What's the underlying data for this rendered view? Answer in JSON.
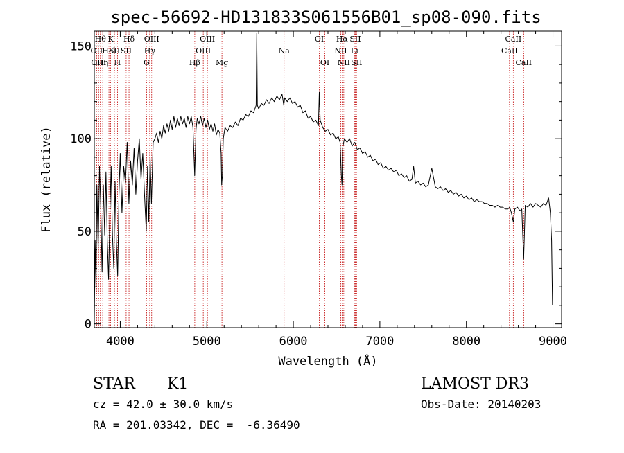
{
  "chart_data": {
    "type": "line",
    "title": "spec-56692-HD131833S061556B01_sp08-090.fits",
    "xlabel": "Wavelength (Å)",
    "ylabel": "Flux (relative)",
    "xlim": [
      3700,
      9100
    ],
    "ylim": [
      -2,
      158
    ],
    "xticks": [
      4000,
      5000,
      6000,
      7000,
      8000,
      9000
    ],
    "yticks": [
      0,
      50,
      100,
      150
    ],
    "grid": false,
    "legend": "none",
    "series": [
      {
        "name": "flux",
        "points": [
          [
            3700,
            2
          ],
          [
            3710,
            45
          ],
          [
            3720,
            18
          ],
          [
            3730,
            75
          ],
          [
            3745,
            40
          ],
          [
            3760,
            85
          ],
          [
            3775,
            62
          ],
          [
            3790,
            28
          ],
          [
            3805,
            75
          ],
          [
            3820,
            48
          ],
          [
            3835,
            82
          ],
          [
            3850,
            45
          ],
          [
            3865,
            24
          ],
          [
            3880,
            60
          ],
          [
            3895,
            85
          ],
          [
            3910,
            48
          ],
          [
            3925,
            30
          ],
          [
            3940,
            77
          ],
          [
            3955,
            45
          ],
          [
            3970,
            26
          ],
          [
            3985,
            70
          ],
          [
            4000,
            92
          ],
          [
            4020,
            60
          ],
          [
            4040,
            85
          ],
          [
            4060,
            76
          ],
          [
            4080,
            98
          ],
          [
            4100,
            65
          ],
          [
            4120,
            88
          ],
          [
            4140,
            75
          ],
          [
            4160,
            95
          ],
          [
            4180,
            70
          ],
          [
            4200,
            88
          ],
          [
            4220,
            100
          ],
          [
            4240,
            78
          ],
          [
            4260,
            92
          ],
          [
            4280,
            70
          ],
          [
            4300,
            50
          ],
          [
            4315,
            85
          ],
          [
            4330,
            55
          ],
          [
            4345,
            90
          ],
          [
            4360,
            65
          ],
          [
            4380,
            98
          ],
          [
            4400,
            100
          ],
          [
            4420,
            103
          ],
          [
            4440,
            98
          ],
          [
            4460,
            104
          ],
          [
            4480,
            100
          ],
          [
            4500,
            107
          ],
          [
            4520,
            103
          ],
          [
            4540,
            108
          ],
          [
            4560,
            104
          ],
          [
            4580,
            110
          ],
          [
            4600,
            105
          ],
          [
            4620,
            112
          ],
          [
            4640,
            106
          ],
          [
            4660,
            111
          ],
          [
            4680,
            107
          ],
          [
            4700,
            112
          ],
          [
            4720,
            108
          ],
          [
            4740,
            111
          ],
          [
            4760,
            106
          ],
          [
            4780,
            112
          ],
          [
            4800,
            108
          ],
          [
            4820,
            112
          ],
          [
            4840,
            106
          ],
          [
            4860,
            80
          ],
          [
            4875,
            105
          ],
          [
            4890,
            111
          ],
          [
            4910,
            108
          ],
          [
            4930,
            112
          ],
          [
            4950,
            107
          ],
          [
            4970,
            111
          ],
          [
            4990,
            106
          ],
          [
            5010,
            110
          ],
          [
            5030,
            105
          ],
          [
            5050,
            108
          ],
          [
            5070,
            104
          ],
          [
            5090,
            108
          ],
          [
            5110,
            102
          ],
          [
            5130,
            105
          ],
          [
            5150,
            103
          ],
          [
            5165,
            92
          ],
          [
            5172,
            75
          ],
          [
            5180,
            80
          ],
          [
            5190,
            100
          ],
          [
            5210,
            106
          ],
          [
            5240,
            104
          ],
          [
            5270,
            107
          ],
          [
            5300,
            106
          ],
          [
            5330,
            109
          ],
          [
            5360,
            107
          ],
          [
            5390,
            111
          ],
          [
            5420,
            110
          ],
          [
            5450,
            113
          ],
          [
            5480,
            112
          ],
          [
            5510,
            115
          ],
          [
            5540,
            114
          ],
          [
            5570,
            118
          ],
          [
            5577,
            157
          ],
          [
            5584,
            118
          ],
          [
            5600,
            116
          ],
          [
            5630,
            119
          ],
          [
            5660,
            118
          ],
          [
            5690,
            121
          ],
          [
            5720,
            119
          ],
          [
            5750,
            122
          ],
          [
            5780,
            120
          ],
          [
            5810,
            123
          ],
          [
            5840,
            121
          ],
          [
            5870,
            124
          ],
          [
            5890,
            118
          ],
          [
            5900,
            122
          ],
          [
            5930,
            120
          ],
          [
            5960,
            122
          ],
          [
            5990,
            119
          ],
          [
            6020,
            120
          ],
          [
            6050,
            117
          ],
          [
            6080,
            118
          ],
          [
            6110,
            114
          ],
          [
            6140,
            115
          ],
          [
            6170,
            111
          ],
          [
            6200,
            112
          ],
          [
            6230,
            109
          ],
          [
            6260,
            110
          ],
          [
            6290,
            107
          ],
          [
            6300,
            125
          ],
          [
            6310,
            110
          ],
          [
            6340,
            106
          ],
          [
            6370,
            104
          ],
          [
            6400,
            105
          ],
          [
            6430,
            102
          ],
          [
            6460,
            103
          ],
          [
            6490,
            100
          ],
          [
            6520,
            101
          ],
          [
            6540,
            98
          ],
          [
            6555,
            80
          ],
          [
            6563,
            75
          ],
          [
            6570,
            95
          ],
          [
            6590,
            100
          ],
          [
            6620,
            98
          ],
          [
            6650,
            100
          ],
          [
            6680,
            96
          ],
          [
            6710,
            98
          ],
          [
            6740,
            94
          ],
          [
            6770,
            95
          ],
          [
            6800,
            92
          ],
          [
            6830,
            93
          ],
          [
            6860,
            90
          ],
          [
            6890,
            91
          ],
          [
            6920,
            88
          ],
          [
            6950,
            89
          ],
          [
            6980,
            86
          ],
          [
            7010,
            87
          ],
          [
            7040,
            84
          ],
          [
            7070,
            85
          ],
          [
            7100,
            83
          ],
          [
            7130,
            84
          ],
          [
            7160,
            82
          ],
          [
            7190,
            83
          ],
          [
            7220,
            80
          ],
          [
            7250,
            81
          ],
          [
            7280,
            79
          ],
          [
            7310,
            80
          ],
          [
            7340,
            77
          ],
          [
            7370,
            78
          ],
          [
            7390,
            85
          ],
          [
            7410,
            76
          ],
          [
            7440,
            77
          ],
          [
            7470,
            75
          ],
          [
            7500,
            76
          ],
          [
            7530,
            74
          ],
          [
            7560,
            75
          ],
          [
            7600,
            84
          ],
          [
            7640,
            74
          ],
          [
            7670,
            73
          ],
          [
            7700,
            74
          ],
          [
            7730,
            72
          ],
          [
            7760,
            73
          ],
          [
            7790,
            71
          ],
          [
            7820,
            72
          ],
          [
            7850,
            70
          ],
          [
            7880,
            71
          ],
          [
            7910,
            69
          ],
          [
            7940,
            70
          ],
          [
            7970,
            68
          ],
          [
            8000,
            69
          ],
          [
            8030,
            67
          ],
          [
            8060,
            68
          ],
          [
            8090,
            66
          ],
          [
            8120,
            67
          ],
          [
            8150,
            66
          ],
          [
            8180,
            66
          ],
          [
            8210,
            65
          ],
          [
            8240,
            65
          ],
          [
            8270,
            64
          ],
          [
            8300,
            64
          ],
          [
            8330,
            63
          ],
          [
            8360,
            64
          ],
          [
            8390,
            63
          ],
          [
            8420,
            63
          ],
          [
            8450,
            62
          ],
          [
            8480,
            62
          ],
          [
            8500,
            63
          ],
          [
            8520,
            60
          ],
          [
            8542,
            55
          ],
          [
            8560,
            62
          ],
          [
            8590,
            63
          ],
          [
            8620,
            61
          ],
          [
            8640,
            62
          ],
          [
            8662,
            35
          ],
          [
            8680,
            64
          ],
          [
            8710,
            63
          ],
          [
            8740,
            65
          ],
          [
            8770,
            63
          ],
          [
            8800,
            65
          ],
          [
            8830,
            64
          ],
          [
            8860,
            63
          ],
          [
            8890,
            65
          ],
          [
            8920,
            64
          ],
          [
            8950,
            68
          ],
          [
            8970,
            60
          ],
          [
            8985,
            45
          ],
          [
            8995,
            10
          ]
        ]
      }
    ],
    "line_markers": [
      {
        "wavelength": 3727,
        "label": "OII",
        "row": 1
      },
      {
        "wavelength": 3750,
        "label": "OIII",
        "row": 2
      },
      {
        "wavelength": 3770,
        "label": "Hθ",
        "row": 0
      },
      {
        "wavelength": 3797,
        "label": "Hη",
        "row": 2
      },
      {
        "wavelength": 3869,
        "label": "Hel",
        "row": 1
      },
      {
        "wavelength": 3889,
        "label": "K",
        "row": 0
      },
      {
        "wavelength": 3933,
        "label": "SII",
        "row": 1
      },
      {
        "wavelength": 3968,
        "label": "H",
        "row": 2
      },
      {
        "wavelength": 4068,
        "label": "SII",
        "row": 1
      },
      {
        "wavelength": 4101,
        "label": "Hδ",
        "row": 0
      },
      {
        "wavelength": 4304,
        "label": "G",
        "row": 2
      },
      {
        "wavelength": 4340,
        "label": "Hγ",
        "row": 1
      },
      {
        "wavelength": 4363,
        "label": "OIII",
        "row": 0
      },
      {
        "wavelength": 4861,
        "label": "Hβ",
        "row": 2
      },
      {
        "wavelength": 4959,
        "label": "OIII",
        "row": 1
      },
      {
        "wavelength": 5007,
        "label": "OIII",
        "row": 0
      },
      {
        "wavelength": 5175,
        "label": "Mg",
        "row": 2
      },
      {
        "wavelength": 5893,
        "label": "Na",
        "row": 1
      },
      {
        "wavelength": 6300,
        "label": "OI",
        "row": 0
      },
      {
        "wavelength": 6364,
        "label": "OI",
        "row": 2
      },
      {
        "wavelength": 6548,
        "label": "NII",
        "row": 1
      },
      {
        "wavelength": 6563,
        "label": "Hα",
        "row": 0
      },
      {
        "wavelength": 6583,
        "label": "NII",
        "row": 2
      },
      {
        "wavelength": 6707,
        "label": "Li",
        "row": 1
      },
      {
        "wavelength": 6716,
        "label": "SII",
        "row": 0
      },
      {
        "wavelength": 6731,
        "label": "SII",
        "row": 2
      },
      {
        "wavelength": 8498,
        "label": "CaII",
        "row": 1
      },
      {
        "wavelength": 8542,
        "label": "CaII",
        "row": 0
      },
      {
        "wavelength": 8662,
        "label": "CaII",
        "row": 2
      }
    ]
  },
  "info": {
    "class": "STAR",
    "subclass": "K1",
    "survey": "LAMOST DR3",
    "redshift": "cz = 42.0 ± 30.0 km/s",
    "obs_date": "Obs-Date: 20140203",
    "coords": "RA = 201.03342, DEC =  -6.36490"
  },
  "colors": {
    "line_marker": "#c00000",
    "spectrum": "#000000",
    "axes": "#000000"
  }
}
